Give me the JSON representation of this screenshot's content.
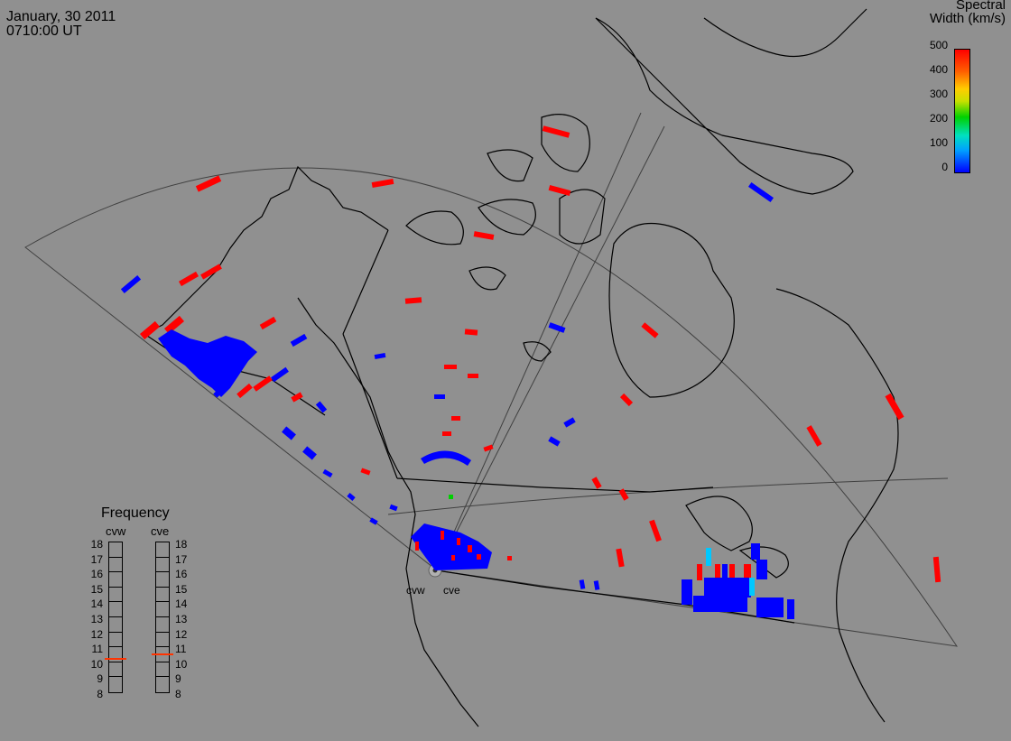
{
  "header": {
    "date": "January, 30 2011",
    "time": "0710:00 UT"
  },
  "colorbar": {
    "title_line1": "Spectral",
    "title_line2": "Width (km/s)",
    "ticks": [
      "500",
      "400",
      "300",
      "200",
      "100",
      "0"
    ],
    "min": 0,
    "max": 500
  },
  "frequency_panel": {
    "title": "Frequency",
    "radars": [
      {
        "name": "cvw",
        "value": 10.5
      },
      {
        "name": "cve",
        "value": 10.8
      }
    ],
    "scale": [
      "18",
      "17",
      "16",
      "15",
      "14",
      "13",
      "12",
      "11",
      "10",
      "9",
      "8"
    ]
  },
  "sites": [
    {
      "label": "cvw"
    },
    {
      "label": "cve"
    }
  ],
  "colors": {
    "background": "#909090",
    "coast": "#000000",
    "fov": "#404040",
    "low_width": "#0000ff",
    "high_width": "#ff0000",
    "mid_width": "#00c8ff",
    "green": "#00d000"
  }
}
